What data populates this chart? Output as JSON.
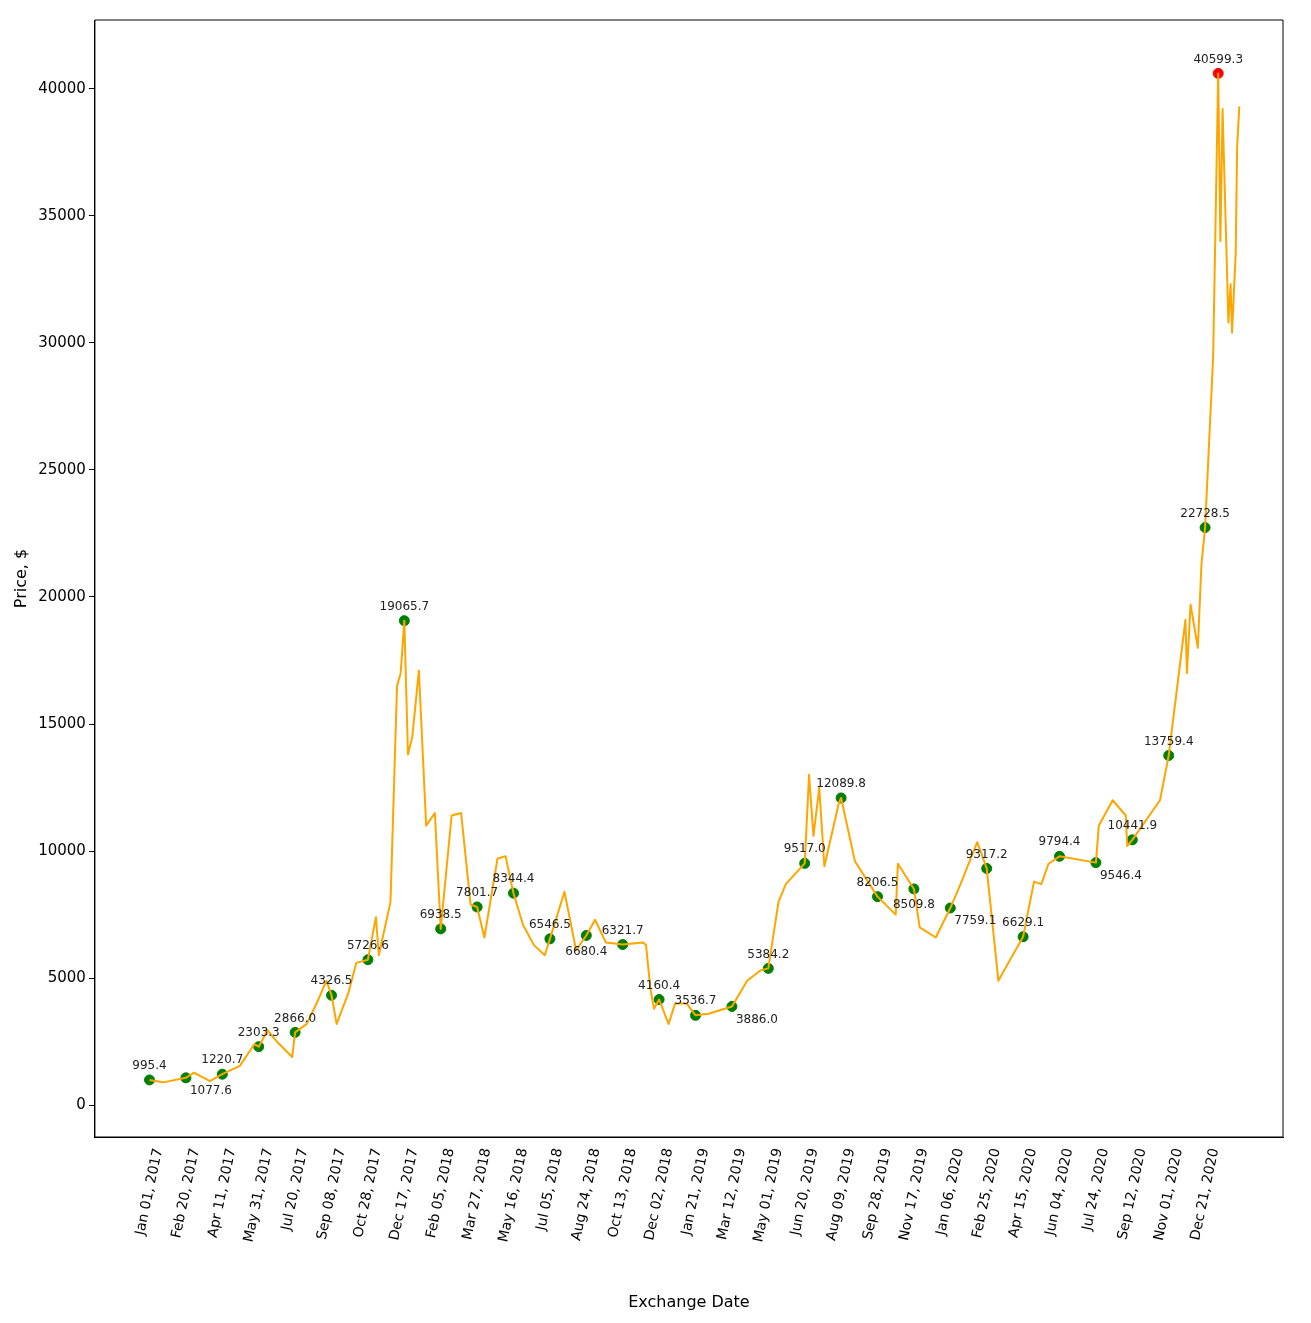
{
  "chart_data": {
    "type": "line",
    "xlabel": "Exchange Date",
    "ylabel": "Price, $",
    "xlim": [
      "2016-10-18",
      "2021-04-07"
    ],
    "ylim": [
      -1250,
      42700
    ],
    "yticks": [
      0,
      5000,
      10000,
      15000,
      20000,
      25000,
      30000,
      35000,
      40000
    ],
    "xticks": [
      {
        "value": "2017-01-01",
        "label": "Jan 01, 2017"
      },
      {
        "value": "2017-02-20",
        "label": "Feb 20, 2017"
      },
      {
        "value": "2017-04-11",
        "label": "Apr 11, 2017"
      },
      {
        "value": "2017-05-31",
        "label": "May 31, 2017"
      },
      {
        "value": "2017-07-20",
        "label": "Jul 20, 2017"
      },
      {
        "value": "2017-09-08",
        "label": "Sep 08, 2017"
      },
      {
        "value": "2017-10-28",
        "label": "Oct 28, 2017"
      },
      {
        "value": "2017-12-17",
        "label": "Dec 17, 2017"
      },
      {
        "value": "2018-02-05",
        "label": "Feb 05, 2018"
      },
      {
        "value": "2018-03-27",
        "label": "Mar 27, 2018"
      },
      {
        "value": "2018-05-16",
        "label": "May 16, 2018"
      },
      {
        "value": "2018-07-05",
        "label": "Jul 05, 2018"
      },
      {
        "value": "2018-08-24",
        "label": "Aug 24, 2018"
      },
      {
        "value": "2018-10-13",
        "label": "Oct 13, 2018"
      },
      {
        "value": "2018-12-02",
        "label": "Dec 02, 2018"
      },
      {
        "value": "2019-01-21",
        "label": "Jan 21, 2019"
      },
      {
        "value": "2019-03-12",
        "label": "Mar 12, 2019"
      },
      {
        "value": "2019-05-01",
        "label": "May 01, 2019"
      },
      {
        "value": "2019-06-20",
        "label": "Jun 20, 2019"
      },
      {
        "value": "2019-08-09",
        "label": "Aug 09, 2019"
      },
      {
        "value": "2019-09-28",
        "label": "Sep 28, 2019"
      },
      {
        "value": "2019-11-17",
        "label": "Nov 17, 2019"
      },
      {
        "value": "2020-01-06",
        "label": "Jan 06, 2020"
      },
      {
        "value": "2020-02-25",
        "label": "Feb 25, 2020"
      },
      {
        "value": "2020-04-15",
        "label": "Apr 15, 2020"
      },
      {
        "value": "2020-06-04",
        "label": "Jun 04, 2020"
      },
      {
        "value": "2020-07-24",
        "label": "Jul 24, 2020"
      },
      {
        "value": "2020-09-12",
        "label": "Sep 12, 2020"
      },
      {
        "value": "2020-11-01",
        "label": "Nov 01, 2020"
      },
      {
        "value": "2020-12-21",
        "label": "Dec 21, 2020"
      }
    ],
    "grid": false,
    "legend": false,
    "series": [
      {
        "color": "#ffa500",
        "marker": "none",
        "x": [
          "2017-01-01",
          "2017-01-20",
          "2017-02-20",
          "2017-03-03",
          "2017-03-25",
          "2017-04-11",
          "2017-05-05",
          "2017-05-25",
          "2017-05-31",
          "2017-06-12",
          "2017-06-25",
          "2017-07-16",
          "2017-07-20",
          "2017-08-05",
          "2017-08-20",
          "2017-09-01",
          "2017-09-08",
          "2017-09-15",
          "2017-10-01",
          "2017-10-12",
          "2017-10-28",
          "2017-11-08",
          "2017-11-12",
          "2017-11-28",
          "2017-12-07",
          "2017-12-12",
          "2017-12-17",
          "2017-12-22",
          "2017-12-28",
          "2018-01-06",
          "2018-01-16",
          "2018-01-28",
          "2018-02-05",
          "2018-02-20",
          "2018-03-05",
          "2018-03-18",
          "2018-03-27",
          "2018-04-06",
          "2018-04-24",
          "2018-05-05",
          "2018-05-16",
          "2018-05-29",
          "2018-06-13",
          "2018-06-28",
          "2018-07-05",
          "2018-07-25",
          "2018-08-10",
          "2018-08-24",
          "2018-09-05",
          "2018-09-20",
          "2018-10-13",
          "2018-11-10",
          "2018-11-14",
          "2018-11-20",
          "2018-11-25",
          "2018-12-02",
          "2018-12-15",
          "2018-12-24",
          "2019-01-09",
          "2019-01-21",
          "2019-02-08",
          "2019-03-12",
          "2019-04-02",
          "2019-04-20",
          "2019-05-01",
          "2019-05-15",
          "2019-05-25",
          "2019-06-20",
          "2019-06-26",
          "2019-07-02",
          "2019-07-10",
          "2019-07-17",
          "2019-08-06",
          "2019-08-09",
          "2019-08-28",
          "2019-09-28",
          "2019-10-23",
          "2019-10-26",
          "2019-11-17",
          "2019-11-25",
          "2019-12-17",
          "2020-01-06",
          "2020-01-20",
          "2020-02-12",
          "2020-02-25",
          "2020-03-12",
          "2020-04-15",
          "2020-04-30",
          "2020-05-10",
          "2020-05-20",
          "2020-06-04",
          "2020-07-24",
          "2020-07-28",
          "2020-08-16",
          "2020-09-03",
          "2020-09-05",
          "2020-09-12",
          "2020-10-20",
          "2020-11-01",
          "2020-11-24",
          "2020-11-26",
          "2020-12-01",
          "2020-12-11",
          "2020-12-16",
          "2020-12-21",
          "2020-12-27",
          "2021-01-01",
          "2021-01-08",
          "2021-01-11",
          "2021-01-14",
          "2021-01-22",
          "2021-01-25",
          "2021-01-27",
          "2021-02-01",
          "2021-02-03",
          "2021-02-06"
        ],
        "values": [
          995,
          900,
          1078,
          1280,
          950,
          1221,
          1550,
          2400,
          2303,
          2950,
          2500,
          1900,
          2866,
          3200,
          4100,
          4900,
          4327,
          3200,
          4400,
          5600,
          5727,
          7400,
          5900,
          8000,
          16500,
          17000,
          19066,
          13800,
          14500,
          17100,
          11000,
          11500,
          6939,
          11400,
          11500,
          7900,
          7802,
          6600,
          9700,
          9800,
          8344,
          7100,
          6300,
          5900,
          6547,
          8400,
          6100,
          6680,
          7300,
          6400,
          6322,
          6400,
          6300,
          4600,
          3800,
          4160,
          3200,
          4000,
          4000,
          3537,
          3600,
          3886,
          4900,
          5300,
          5384,
          8000,
          8700,
          9517,
          13000,
          10600,
          12500,
          9400,
          11900,
          12090,
          9600,
          8207,
          7500,
          9500,
          8510,
          7000,
          6600,
          7759,
          8700,
          10350,
          9317,
          4900,
          6629,
          8800,
          8700,
          9500,
          9794,
          9546,
          11000,
          12000,
          11400,
          10200,
          10442,
          12000,
          13759,
          19100,
          17000,
          19700,
          18000,
          21300,
          22729,
          26400,
          29400,
          40599,
          34000,
          39200,
          30800,
          32300,
          30400,
          33500,
          37700,
          39300
        ]
      },
      {
        "type": "scatter",
        "color": "#008000",
        "marker": "circle",
        "x": [
          "2017-01-01",
          "2017-02-20",
          "2017-04-11",
          "2017-05-31",
          "2017-07-20",
          "2017-09-08",
          "2017-10-28",
          "2017-12-17",
          "2018-02-05",
          "2018-03-27",
          "2018-05-16",
          "2018-07-05",
          "2018-08-24",
          "2018-10-13",
          "2018-12-02",
          "2019-01-21",
          "2019-03-12",
          "2019-05-01",
          "2019-06-20",
          "2019-08-09",
          "2019-09-28",
          "2019-11-17",
          "2020-01-06",
          "2020-02-25",
          "2020-04-15",
          "2020-06-04",
          "2020-07-24",
          "2020-09-12",
          "2020-11-01",
          "2020-12-21"
        ],
        "values": [
          995.4,
          1077.6,
          1220.7,
          2303.3,
          2866.0,
          4326.5,
          5726.6,
          19065.7,
          6938.5,
          7801.7,
          8344.4,
          6546.5,
          6680.4,
          6321.7,
          4160.4,
          3536.7,
          3886.0,
          5384.2,
          9517.0,
          12089.8,
          8206.5,
          8509.8,
          7759.1,
          9317.2,
          6629.1,
          9794.4,
          9546.4,
          10441.9,
          13759.4,
          22728.5
        ],
        "value_labels": [
          "995.4",
          "1077.6",
          "1220.7",
          "2303.3",
          "2866.0",
          "4326.5",
          "5726.6",
          "19065.7",
          "6938.5",
          "7801.7",
          "8344.4",
          "6546.5",
          "6680.4",
          "6321.7",
          "4160.4",
          "3536.7",
          "3886.0",
          "5384.2",
          "9517.0",
          "12089.8",
          "8206.5",
          "8509.8",
          "7759.1",
          "9317.2",
          "6629.1",
          "9794.4",
          "9546.4",
          "10441.9",
          "13759.4",
          "22728.5"
        ]
      },
      {
        "type": "scatter",
        "color": "#ff0000",
        "marker": "circle",
        "x": [
          "2021-01-08"
        ],
        "values": [
          40599.3
        ],
        "value_labels": [
          "40599.3"
        ]
      }
    ]
  }
}
